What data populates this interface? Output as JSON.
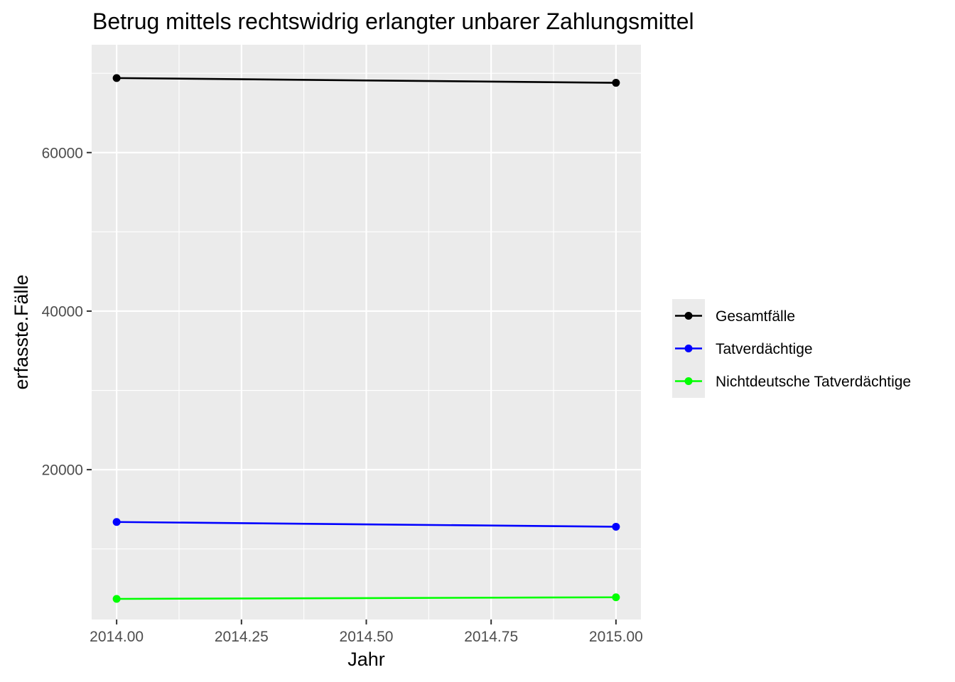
{
  "chart_data": {
    "type": "line",
    "title": "Betrug mittels rechtswidrig erlangter unbarer Zahlungsmittel",
    "xlabel": "Jahr",
    "ylabel": "erfasste.Fälle",
    "x": [
      2014,
      2015
    ],
    "xlim": [
      2013.95,
      2015.05
    ],
    "ylim": [
      1100,
      73600
    ],
    "x_ticks": [
      2014.0,
      2014.25,
      2014.5,
      2014.75,
      2015.0
    ],
    "x_tick_labels": [
      "2014.00",
      "2014.25",
      "2014.50",
      "2014.75",
      "2015.00"
    ],
    "y_ticks": [
      20000,
      40000,
      60000
    ],
    "y_tick_labels": [
      "20000",
      "40000",
      "60000"
    ],
    "grid": true,
    "legend_position": "right",
    "series": [
      {
        "name": "Gesamtfälle",
        "color": "#000000",
        "values": [
          69400,
          68800
        ]
      },
      {
        "name": "Tatverdächtige",
        "color": "#0000ff",
        "values": [
          13400,
          12800
        ]
      },
      {
        "name": "Nichtdeutsche Tatverdächtige",
        "color": "#00ff00",
        "values": [
          3700,
          3900
        ]
      }
    ]
  }
}
